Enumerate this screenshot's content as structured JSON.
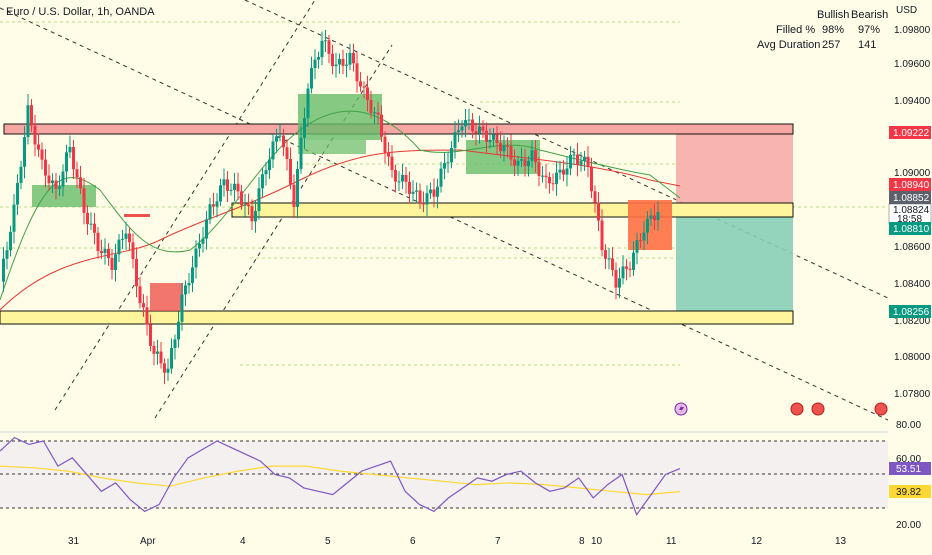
{
  "header": {
    "title": "Euro / U.S. Dollar, 1h, OANDA"
  },
  "stats": {
    "columns": [
      "Bullish",
      "Bearish"
    ],
    "rows": [
      {
        "label": "Filled %",
        "values": [
          "98%",
          "97%"
        ]
      },
      {
        "label": "Avg Duration",
        "values": [
          "257",
          "141"
        ]
      }
    ]
  },
  "price_axis": {
    "unit": "USD",
    "ticks": [
      "1.09800",
      "1.09600",
      "1.09400",
      "1.09000",
      "1.08600",
      "1.08400",
      "1.08200",
      "1.08000",
      "1.07800"
    ],
    "tags": {
      "t1": {
        "text": "1.09222",
        "bg": "#f23645"
      },
      "t2": {
        "text": "1.08940",
        "bg": "#f23645"
      },
      "t3": {
        "text": "1.08852",
        "bg": "#5d606b"
      },
      "t4a": {
        "text": "1.08824",
        "bg": "#ffffff"
      },
      "t4b": {
        "text": "18:58",
        "bg": "#ffffff"
      },
      "t5": {
        "text": "1.08810",
        "bg": "#089981"
      },
      "t6": {
        "text": "1.08256",
        "bg": "#089981"
      }
    }
  },
  "rsi_axis": {
    "ticks": [
      "80.00",
      "60.00",
      "20.00"
    ],
    "tags": {
      "rsi": {
        "text": "53.51",
        "bg": "#7e57c2"
      },
      "ma": {
        "text": "39.82",
        "bg": "#fdd835"
      }
    }
  },
  "time_axis": {
    "labels": [
      "31",
      "Apr",
      "4",
      "5",
      "6",
      "7",
      "8",
      "10",
      "11",
      "12",
      "13"
    ]
  },
  "colors": {
    "up": "#089981",
    "down": "#f23645",
    "bg": "#fffde7",
    "ema_fast": "#43a047",
    "ema_slow": "#e53935",
    "rsi": "#7e57c2",
    "rsi_ma": "#fdd835",
    "zone_red": "#f7a7a3",
    "zone_yellow": "#fff59d"
  },
  "chart_data": {
    "type": "candlestick",
    "title": "Euro / U.S. Dollar, 1h, OANDA",
    "y_unit": "USD",
    "ylim": [
      1.0765,
      1.0995
    ],
    "x_labels": [
      "31",
      "Apr",
      "4",
      "5",
      "6",
      "7",
      "8",
      "10",
      "11",
      "12",
      "13"
    ],
    "price_series": [
      1.084,
      1.088,
      1.0935,
      1.0905,
      1.089,
      1.0915,
      1.088,
      1.086,
      1.085,
      1.087,
      1.083,
      1.08,
      1.079,
      1.083,
      1.0855,
      1.088,
      1.0895,
      1.089,
      1.0875,
      1.0905,
      1.0925,
      1.0885,
      1.095,
      1.0975,
      1.096,
      1.0965,
      1.0945,
      1.093,
      1.09,
      1.0895,
      1.0885,
      1.089,
      1.091,
      1.093,
      1.0925,
      1.092,
      1.0915,
      1.0905,
      1.091,
      1.0895,
      1.09,
      1.091,
      1.0905,
      1.086,
      1.084,
      1.085,
      1.087,
      1.088
    ],
    "zones": [
      {
        "kind": "resistance",
        "from": 1.09275,
        "to": 1.09165
      },
      {
        "kind": "support",
        "from": 1.0886,
        "to": 1.08745
      },
      {
        "kind": "support",
        "from": 1.08265,
        "to": 1.08145
      }
    ],
    "position": {
      "target": 1.09222,
      "stop": 1.08256
    },
    "rsi": {
      "values": [
        64,
        72,
        68,
        70,
        55,
        60,
        50,
        40,
        45,
        35,
        28,
        32,
        48,
        60,
        65,
        70,
        66,
        62,
        58,
        50,
        48,
        42,
        40,
        38,
        45,
        52,
        55,
        58,
        40,
        32,
        28,
        36,
        42,
        48,
        46,
        50,
        52,
        45,
        40,
        42,
        48,
        36,
        44,
        50,
        26,
        38,
        50,
        53.51
      ],
      "ma": [
        55,
        54,
        52,
        48,
        45,
        43,
        48,
        52,
        55,
        55,
        52,
        50,
        48,
        46,
        44,
        45,
        44,
        42,
        40,
        38,
        39.82
      ],
      "levels": [
        70,
        50,
        30
      ],
      "last": 53.51,
      "ma_last": 39.82
    }
  }
}
